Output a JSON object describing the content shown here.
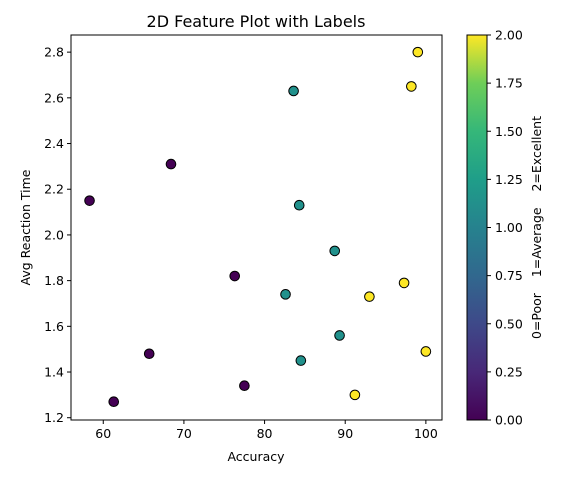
{
  "chart_data": {
    "type": "scatter",
    "title": "2D Feature Plot with Labels",
    "xlabel": "Accuracy",
    "ylabel": "Avg Reaction Time",
    "xlim": [
      56.0,
      102.0
    ],
    "ylim": [
      1.19,
      2.875
    ],
    "xticks": [
      60,
      70,
      80,
      90,
      100
    ],
    "yticks": [
      1.2,
      1.4,
      1.6,
      1.8,
      2.0,
      2.2,
      2.4,
      2.6,
      2.8
    ],
    "grid": false,
    "colormap": "viridis",
    "colorbar": {
      "label": "0=Poor    1=Average    2=Excellent",
      "range": [
        0.0,
        2.0
      ],
      "ticks": [
        0.0,
        0.25,
        0.5,
        0.75,
        1.0,
        1.25,
        1.5,
        1.75,
        2.0
      ]
    },
    "points": [
      {
        "x": 58.3,
        "y": 2.15,
        "label": 0
      },
      {
        "x": 61.3,
        "y": 1.27,
        "label": 0
      },
      {
        "x": 65.7,
        "y": 1.48,
        "label": 0
      },
      {
        "x": 68.4,
        "y": 2.31,
        "label": 0
      },
      {
        "x": 76.3,
        "y": 1.82,
        "label": 0
      },
      {
        "x": 77.5,
        "y": 1.34,
        "label": 0
      },
      {
        "x": 82.6,
        "y": 1.74,
        "label": 1
      },
      {
        "x": 83.6,
        "y": 2.63,
        "label": 1
      },
      {
        "x": 84.3,
        "y": 2.13,
        "label": 1
      },
      {
        "x": 84.5,
        "y": 1.45,
        "label": 1
      },
      {
        "x": 88.7,
        "y": 1.93,
        "label": 1
      },
      {
        "x": 89.3,
        "y": 1.56,
        "label": 1
      },
      {
        "x": 91.2,
        "y": 1.3,
        "label": 2
      },
      {
        "x": 93.0,
        "y": 1.73,
        "label": 2
      },
      {
        "x": 97.3,
        "y": 1.79,
        "label": 2
      },
      {
        "x": 98.2,
        "y": 2.65,
        "label": 2
      },
      {
        "x": 99.0,
        "y": 2.8,
        "label": 2
      },
      {
        "x": 100.0,
        "y": 1.49,
        "label": 2
      }
    ],
    "label_colors": [
      "#440154",
      "#21918c",
      "#fde725"
    ]
  }
}
